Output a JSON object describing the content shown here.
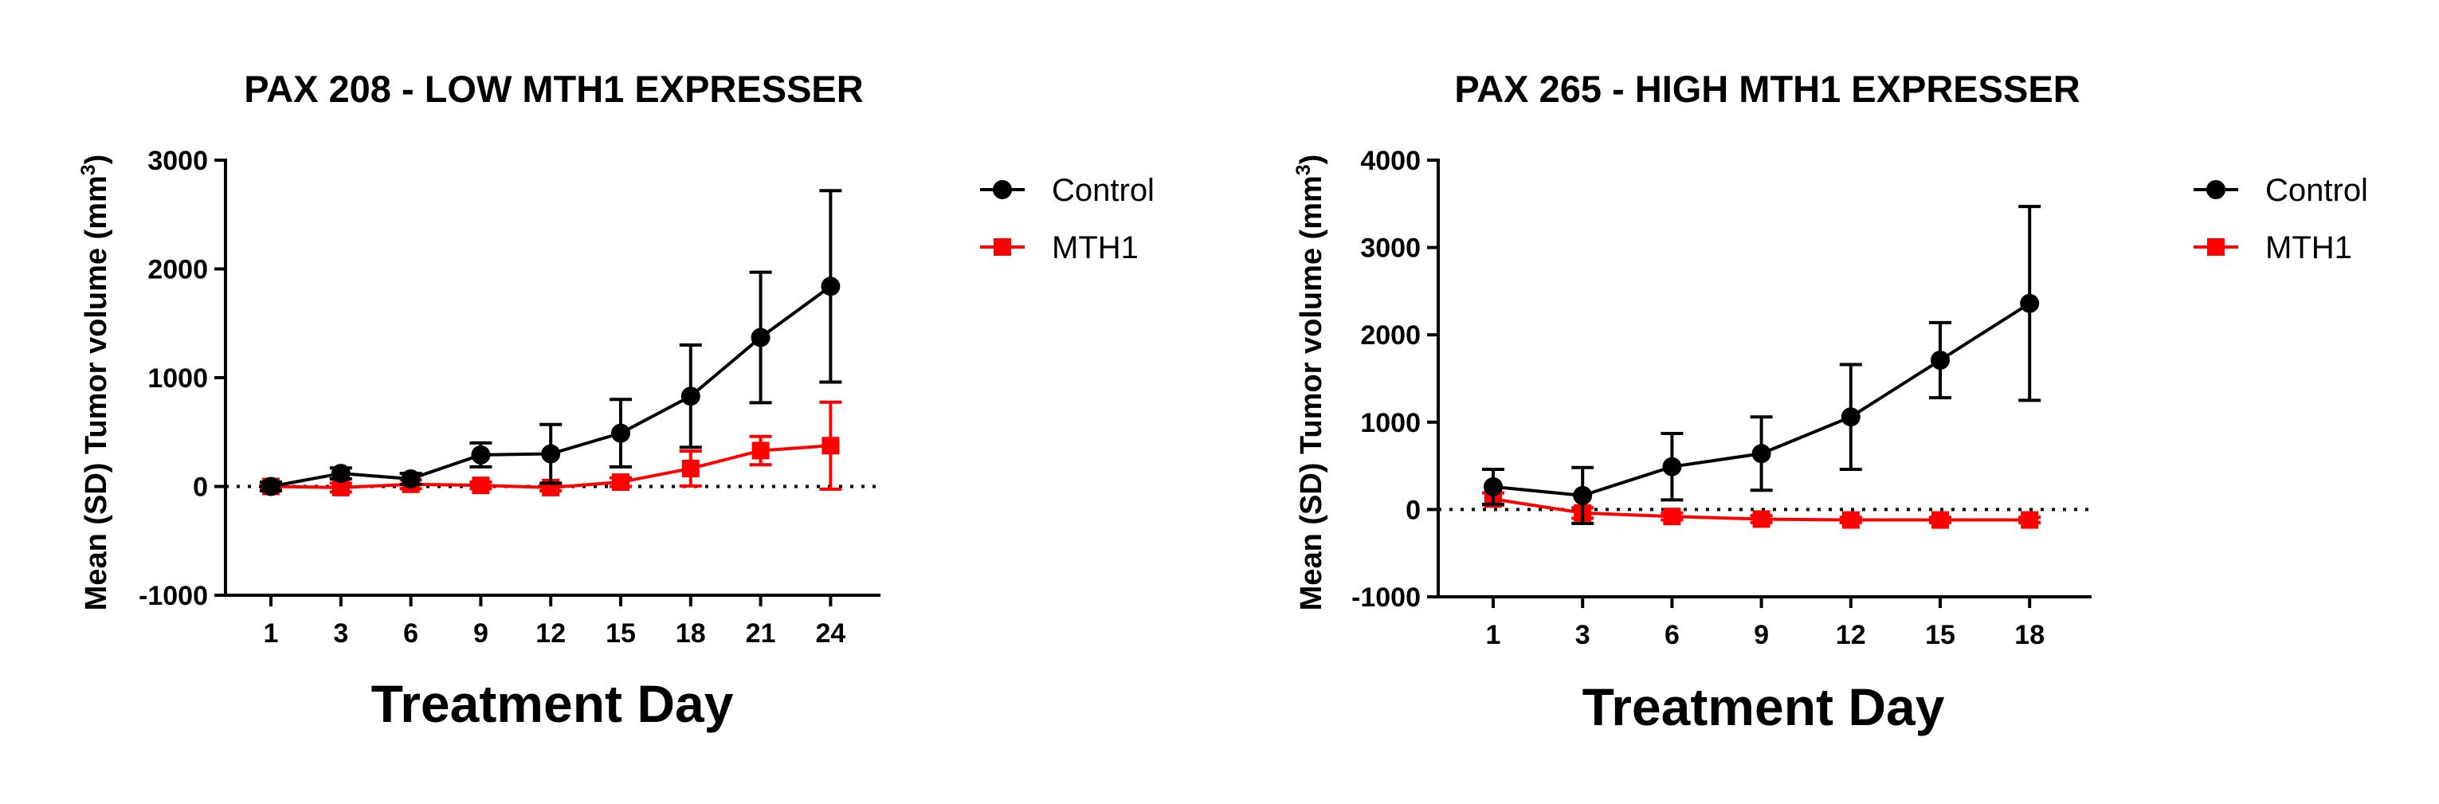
{
  "chart_data": [
    {
      "type": "line",
      "title": "PAX 208 - LOW MTH1 EXPRESSER",
      "xlabel": "Treatment  Day",
      "ylabel": "Mean (SD) Tumor volume (mm",
      "ylabel_sup": "3",
      "ylabel_close": ")",
      "categories": [
        "1",
        "3",
        "6",
        "9",
        "12",
        "15",
        "18",
        "21",
        "24"
      ],
      "yticks": [
        "3000",
        "2000",
        "1000",
        "0",
        "-1000"
      ],
      "ylim": [
        -1000,
        3000
      ],
      "zero_line": "dotted",
      "legend_position": "right",
      "series": [
        {
          "name": "Control",
          "color": "#000000",
          "marker": "circle",
          "values": [
            0,
            120,
            70,
            290,
            300,
            490,
            830,
            1370,
            1840
          ],
          "sd": [
            40,
            50,
            50,
            110,
            270,
            310,
            470,
            600,
            880
          ]
        },
        {
          "name": "MTH1",
          "color": "#ff0000",
          "marker": "square",
          "values": [
            0,
            -10,
            20,
            10,
            -10,
            40,
            165,
            330,
            375
          ],
          "sd": [
            30,
            40,
            40,
            30,
            30,
            40,
            160,
            130,
            400
          ]
        }
      ]
    },
    {
      "type": "line",
      "title": "PAX 265 - HIGH MTH1 EXPRESSER",
      "xlabel": "Treatment  Day",
      "ylabel": "Mean (SD) Tumor volume (mm",
      "ylabel_sup": "3",
      "ylabel_close": ")",
      "categories": [
        "1",
        "3",
        "6",
        "9",
        "12",
        "15",
        "18"
      ],
      "yticks": [
        "4000",
        "3000",
        "2000",
        "1000",
        "0",
        "-1000"
      ],
      "ylim": [
        -1000,
        4000
      ],
      "zero_line": "dotted",
      "legend_position": "right",
      "series": [
        {
          "name": "Control",
          "color": "#000000",
          "marker": "circle",
          "values": [
            260,
            160,
            490,
            640,
            1060,
            1710,
            2360
          ],
          "sd": [
            200,
            320,
            380,
            420,
            600,
            430,
            1110
          ]
        },
        {
          "name": "MTH1",
          "color": "#ff0000",
          "marker": "square",
          "values": [
            120,
            -40,
            -80,
            -110,
            -120,
            -120,
            -120
          ],
          "sd": [
            70,
            60,
            40,
            40,
            30,
            30,
            30
          ]
        }
      ]
    }
  ]
}
